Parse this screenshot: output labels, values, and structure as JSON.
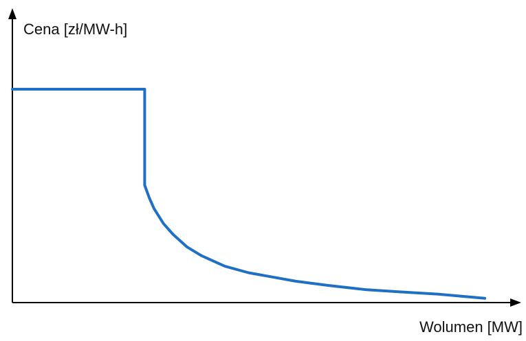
{
  "chart_data": {
    "type": "line",
    "xlabel": "Wolumen [MW]",
    "ylabel": "Cena [zł/MW-h]",
    "grid": false,
    "legend": "none",
    "xlim": [
      0,
      100
    ],
    "ylim": [
      0,
      100
    ],
    "series": [
      {
        "color": "#1f6fc5",
        "x": [
          0,
          28,
          28,
          29,
          30,
          32,
          34,
          37,
          40,
          45,
          50,
          55,
          60,
          67,
          75,
          82,
          90,
          100
        ],
        "y": [
          100,
          100,
          55,
          49,
          44,
          37,
          32,
          26,
          22,
          17,
          14,
          12,
          10,
          8,
          6,
          5,
          4,
          2
        ]
      }
    ]
  }
}
